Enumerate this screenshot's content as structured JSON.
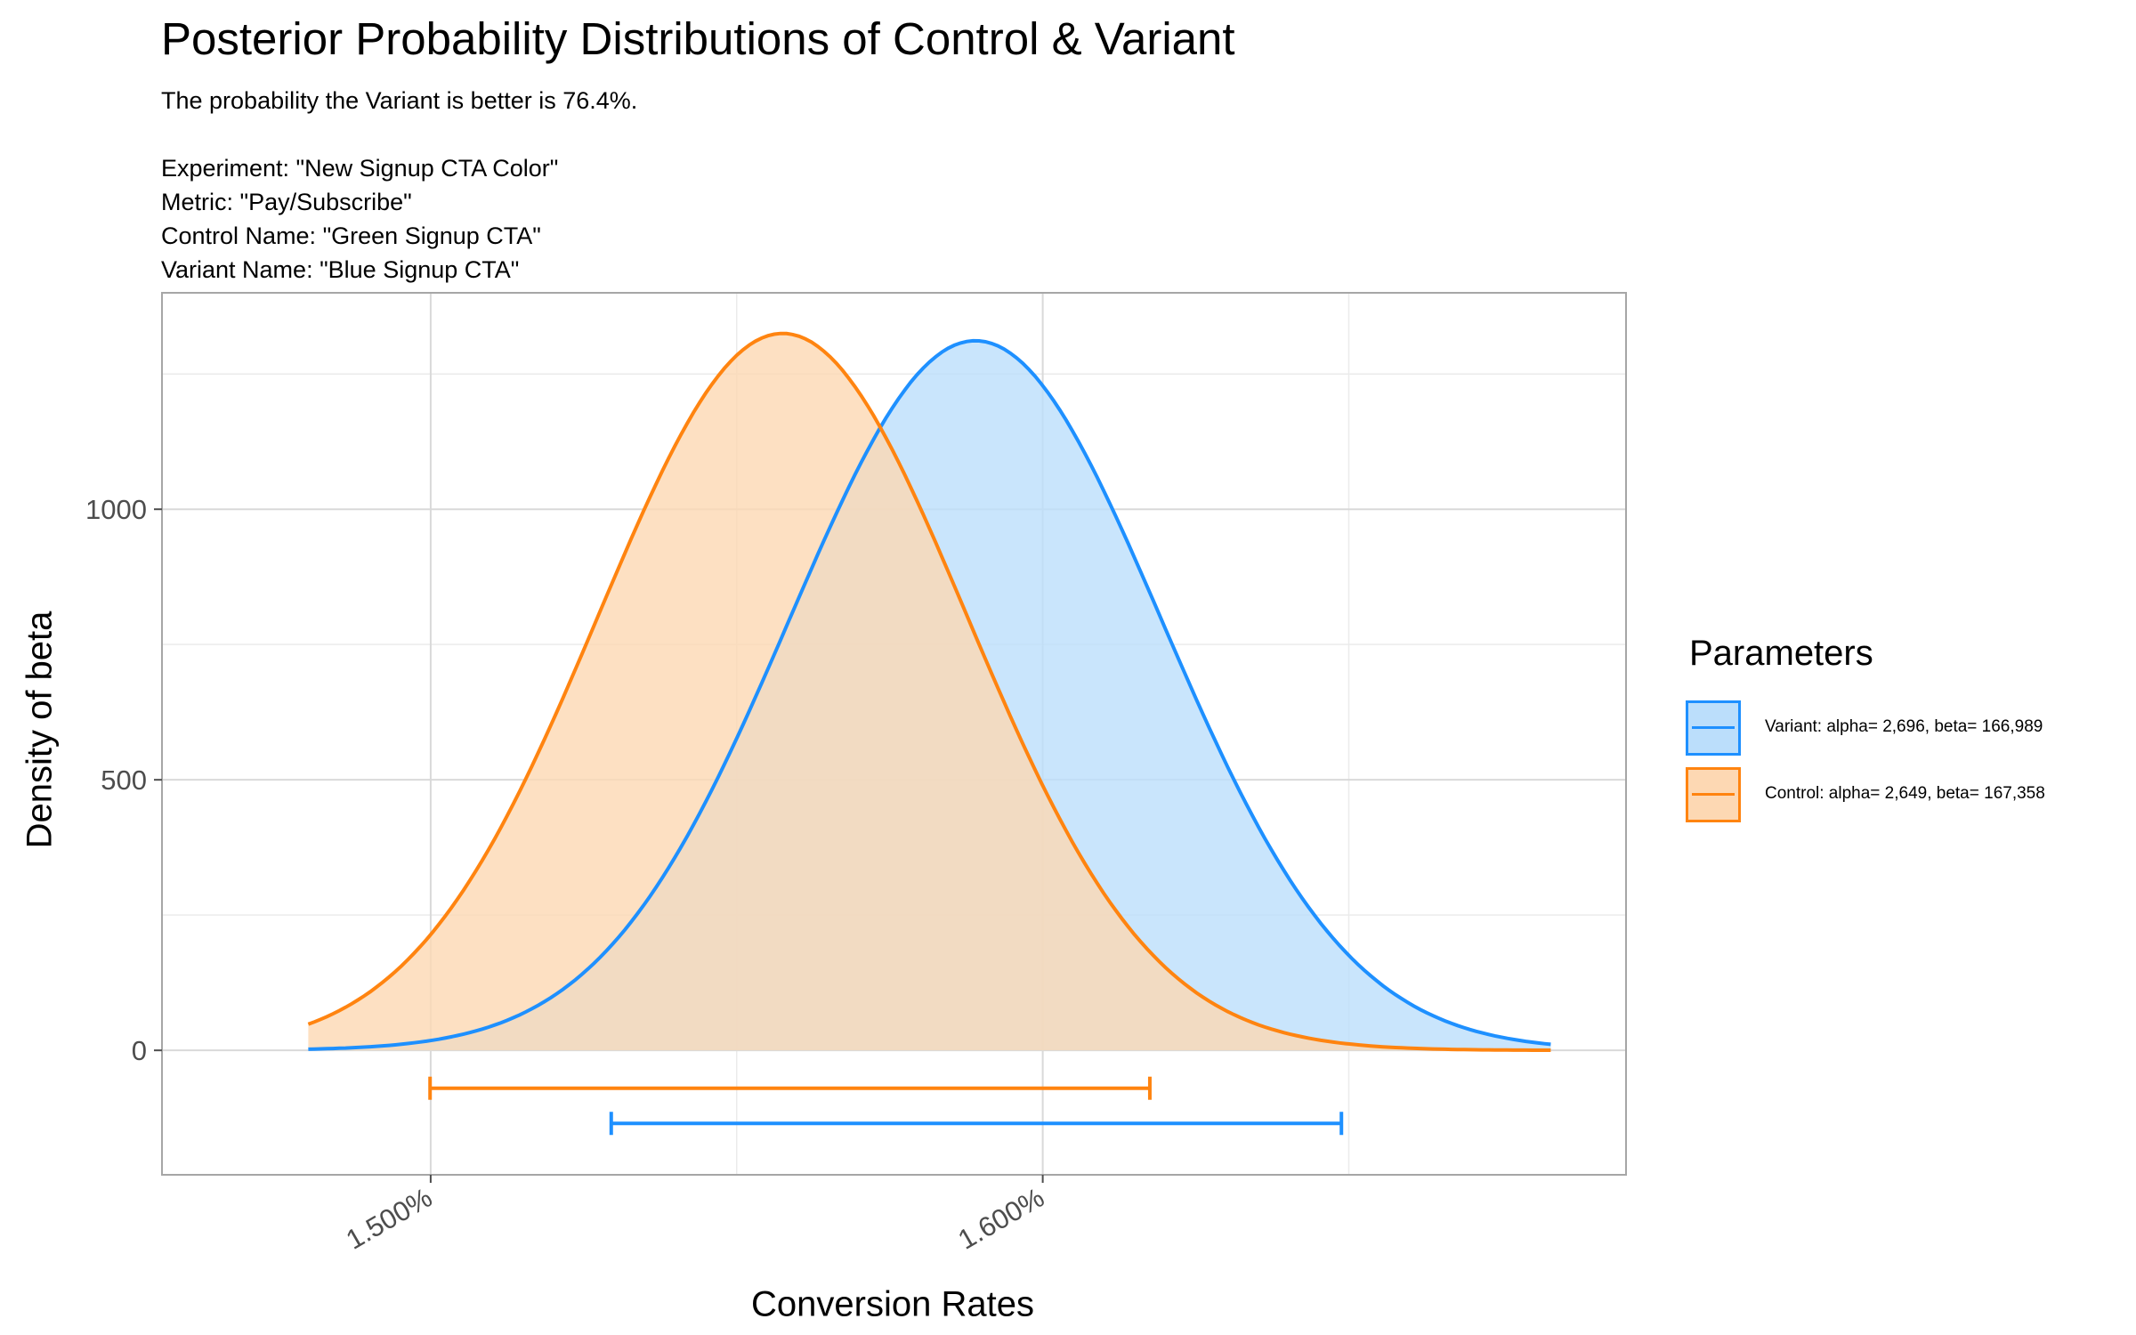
{
  "title": "Posterior Probability Distributions of Control & Variant",
  "subtitle_lines": [
    "The probability the Variant is better is 76.4%.",
    "",
    "Experiment: \"New Signup CTA Color\"",
    "Metric: \"Pay/Subscribe\"",
    "Control Name: \"Green Signup CTA\"",
    "Variant Name: \"Blue Signup CTA\""
  ],
  "legend": {
    "title": "Parameters",
    "items": [
      {
        "label": "Variant: alpha= 2,696, beta= 166,989",
        "color": "#1e90ff",
        "fill": "#bbdefb"
      },
      {
        "label": "Control: alpha= 2,649, beta= 167,358",
        "color": "#ff8410",
        "fill": "#fdd8b3"
      }
    ]
  },
  "chart_data": {
    "type": "area",
    "xlabel": "Conversion Rates",
    "ylabel": "Density of beta",
    "xlim": [
      0.014561,
      0.016953
    ],
    "ylim": [
      -230,
      1400
    ],
    "x_ticks": [
      0.015,
      0.016
    ],
    "x_tick_labels": [
      "1.500%",
      "1.600%"
    ],
    "y_ticks": [
      0,
      500,
      1000
    ],
    "y_tick_labels": [
      "0",
      "500",
      "1000"
    ],
    "grid": true,
    "legend_position": "right",
    "series": [
      {
        "name": "Variant: alpha= 2,696, beta= 166,989",
        "color": "#1e90ff",
        "fill": "#bbdefb",
        "x_range": [
          0.0148,
          0.01683
        ],
        "mean": 0.01589,
        "sd": 0.0003042,
        "interval": [
          0.015295,
          0.016488
        ]
      },
      {
        "name": "Control: alpha= 2,649, beta= 167,358",
        "color": "#ff8410",
        "fill": "#fdd8b3",
        "x_range": [
          0.0148,
          0.01683
        ],
        "mean": 0.015575,
        "sd": 0.0003011,
        "interval": [
          0.014999,
          0.016175
        ]
      }
    ]
  }
}
